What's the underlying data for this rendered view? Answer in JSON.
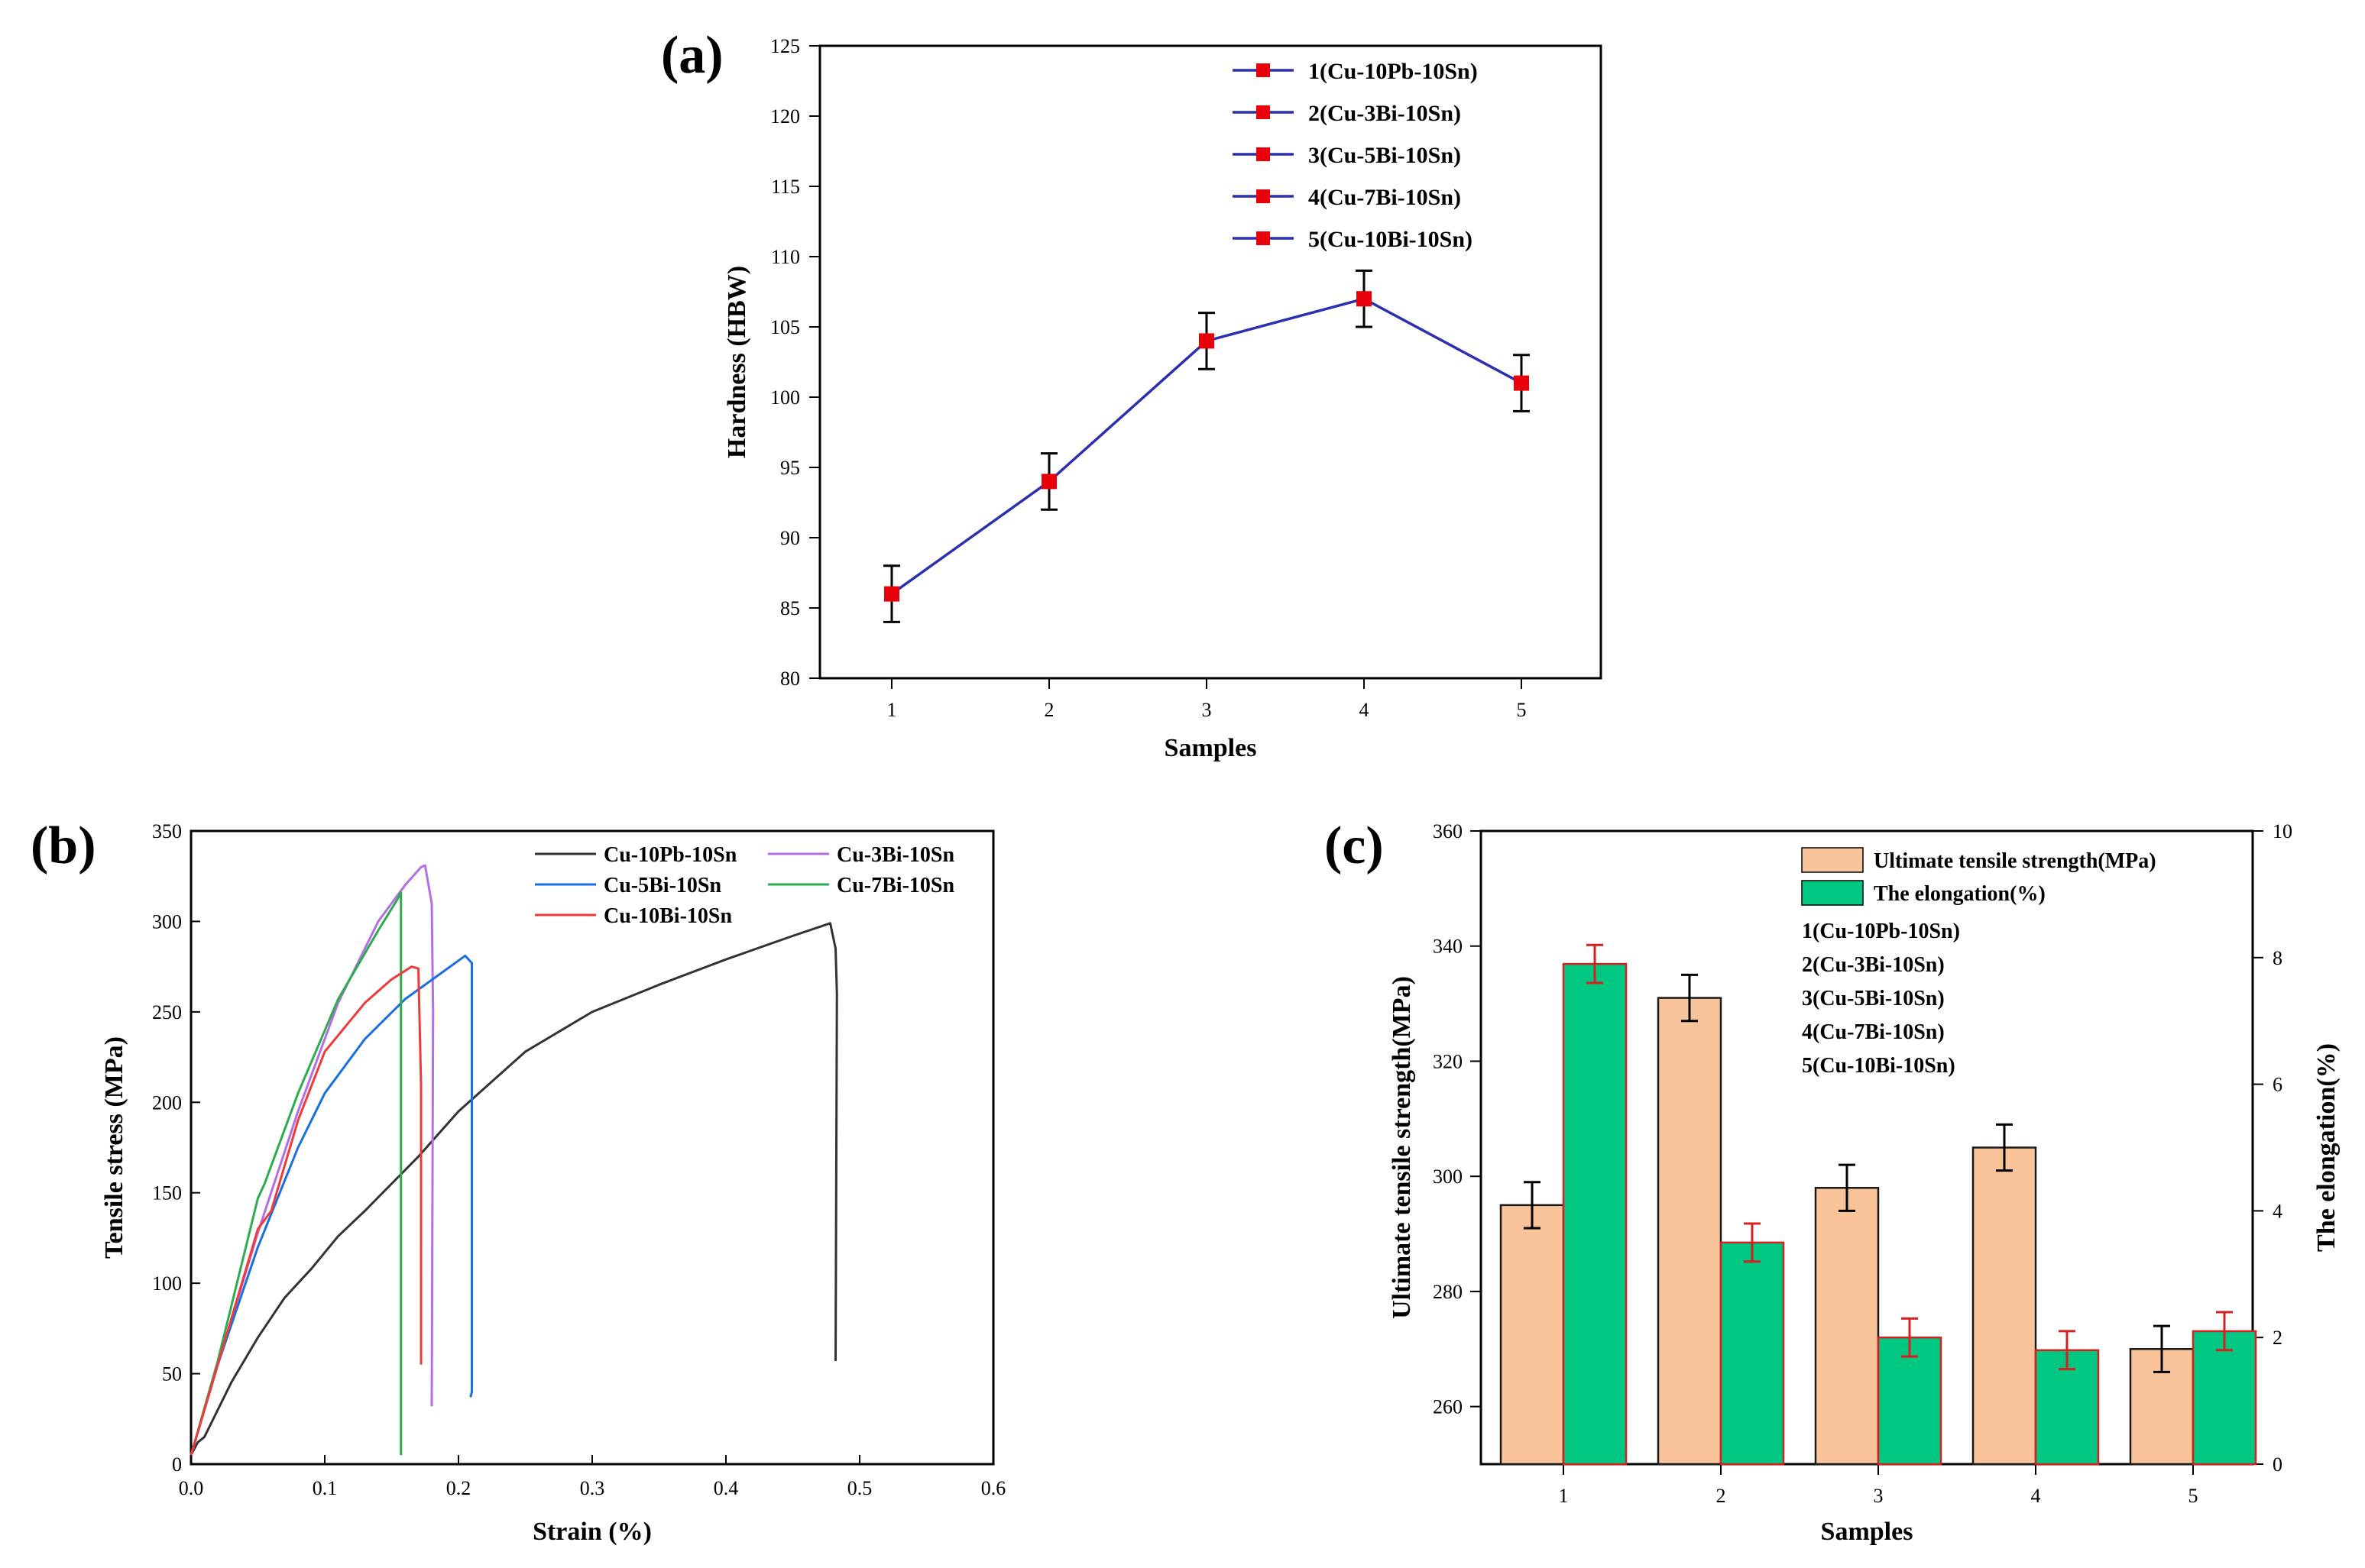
{
  "chart_data": [
    {
      "panel": "(a)",
      "type": "line",
      "xlabel": "Samples",
      "ylabel": "Hardness (HBW)",
      "categories": [
        "1",
        "2",
        "3",
        "4",
        "5"
      ],
      "values": [
        86,
        94,
        104,
        107,
        101
      ],
      "errors": [
        2,
        2,
        2,
        2,
        2
      ],
      "ylim": [
        80,
        125
      ],
      "yticks": [
        "80",
        "85",
        "90",
        "95",
        "100",
        "105",
        "110",
        "115",
        "120",
        "125"
      ],
      "line_color": "#2b2fb0",
      "marker_color": "#e8000b",
      "legend_position": "top-right",
      "legend": [
        "1(Cu-10Pb-10Sn)",
        "2(Cu-3Bi-10Sn)",
        "3(Cu-5Bi-10Sn)",
        "4(Cu-7Bi-10Sn)",
        "5(Cu-10Bi-10Sn)"
      ],
      "grid": false
    },
    {
      "panel": "(b)",
      "type": "line",
      "xlabel": "Strain (%)",
      "ylabel": "Tensile stress (MPa)",
      "xlim": [
        0,
        0.6
      ],
      "ylim": [
        0,
        350
      ],
      "xticks": [
        "0.0",
        "0.1",
        "0.2",
        "0.3",
        "0.4",
        "0.5",
        "0.6"
      ],
      "yticks": [
        "0",
        "50",
        "100",
        "150",
        "200",
        "250",
        "300",
        "350"
      ],
      "legend_position": "top-right",
      "series": [
        {
          "name": "Cu-10Pb-10Sn",
          "color": "#333333",
          "points": [
            [
              0.0,
              5
            ],
            [
              0.005,
              12
            ],
            [
              0.01,
              15
            ],
            [
              0.02,
              30
            ],
            [
              0.03,
              45
            ],
            [
              0.05,
              70
            ],
            [
              0.07,
              92
            ],
            [
              0.09,
              108
            ],
            [
              0.11,
              126
            ],
            [
              0.13,
              140
            ],
            [
              0.15,
              155
            ],
            [
              0.17,
              170
            ],
            [
              0.2,
              195
            ],
            [
              0.25,
              228
            ],
            [
              0.3,
              250
            ],
            [
              0.35,
              265
            ],
            [
              0.4,
              279
            ],
            [
              0.45,
              292
            ],
            [
              0.478,
              299
            ],
            [
              0.482,
              285
            ],
            [
              0.483,
              260
            ],
            [
              0.482,
              57
            ]
          ]
        },
        {
          "name": "Cu-3Bi-10Sn",
          "color": "#b46ee6",
          "points": [
            [
              0.0,
              5
            ],
            [
              0.02,
              55
            ],
            [
              0.05,
              128
            ],
            [
              0.08,
              195
            ],
            [
              0.11,
              255
            ],
            [
              0.14,
              300
            ],
            [
              0.16,
              320
            ],
            [
              0.172,
              330
            ],
            [
              0.175,
              331
            ],
            [
              0.18,
              310
            ],
            [
              0.181,
              250
            ],
            [
              0.18,
              32
            ]
          ]
        },
        {
          "name": "Cu-5Bi-10Sn",
          "color": "#1b6ee0",
          "points": [
            [
              0.0,
              5
            ],
            [
              0.02,
              55
            ],
            [
              0.05,
              120
            ],
            [
              0.08,
              175
            ],
            [
              0.1,
              205
            ],
            [
              0.13,
              235
            ],
            [
              0.16,
              257
            ],
            [
              0.19,
              273
            ],
            [
              0.205,
              281
            ],
            [
              0.21,
              277
            ],
            [
              0.21,
              40
            ],
            [
              0.209,
              37
            ]
          ]
        },
        {
          "name": "Cu-7Bi-10Sn",
          "color": "#2cab4f",
          "points": [
            [
              0.0,
              5
            ],
            [
              0.02,
              57
            ],
            [
              0.05,
              147
            ],
            [
              0.055,
              155
            ],
            [
              0.08,
              205
            ],
            [
              0.11,
              257
            ],
            [
              0.14,
              295
            ],
            [
              0.155,
              313
            ],
            [
              0.157,
              316
            ],
            [
              0.157,
              200
            ],
            [
              0.157,
              5
            ]
          ]
        },
        {
          "name": "Cu-10Bi-10Sn",
          "color": "#f03a3a",
          "points": [
            [
              0.0,
              5
            ],
            [
              0.02,
              55
            ],
            [
              0.05,
              130
            ],
            [
              0.06,
              140
            ],
            [
              0.08,
              190
            ],
            [
              0.1,
              228
            ],
            [
              0.13,
              255
            ],
            [
              0.15,
              268
            ],
            [
              0.165,
              275
            ],
            [
              0.17,
              274
            ],
            [
              0.172,
              210
            ],
            [
              0.172,
              55
            ]
          ]
        }
      ],
      "grid": false
    },
    {
      "panel": "(c)",
      "type": "bar",
      "xlabel": "Samples",
      "categories": [
        "1",
        "2",
        "3",
        "4",
        "5"
      ],
      "series": [
        {
          "name": "Ultimate tensile strength(MPa)",
          "axis": "left",
          "color": "#f9c49a",
          "edge": "#1a1a1a",
          "err_color": "#000000",
          "values": [
            295,
            331,
            298,
            305,
            270
          ],
          "errors": [
            4,
            4,
            4,
            4,
            4
          ]
        },
        {
          "name": "The elongation(%)",
          "axis": "right",
          "color": "#00c781",
          "edge": "#d62020",
          "err_color": "#d62020",
          "values": [
            7.9,
            3.5,
            2.0,
            1.8,
            2.1
          ],
          "errors": [
            0.3,
            0.3,
            0.3,
            0.3,
            0.3
          ]
        }
      ],
      "ylabel_left": "Ultimate tensile strength(MPa)",
      "ylabel_right": "The elongation(%)",
      "ylim_left": [
        250,
        360
      ],
      "ylim_right": [
        0,
        10
      ],
      "yticks_left": [
        "260",
        "280",
        "300",
        "320",
        "340",
        "360"
      ],
      "yticks_right": [
        "0",
        "2",
        "4",
        "6",
        "8",
        "10"
      ],
      "legend_position": "top-right",
      "legend": [
        "Ultimate tensile strength(MPa)",
        "The elongation(%)"
      ],
      "legend_notes": [
        "1(Cu-10Pb-10Sn)",
        "2(Cu-3Bi-10Sn)",
        "3(Cu-5Bi-10Sn)",
        "4(Cu-7Bi-10Sn)",
        "5(Cu-10Bi-10Sn)"
      ],
      "grid": false
    }
  ]
}
